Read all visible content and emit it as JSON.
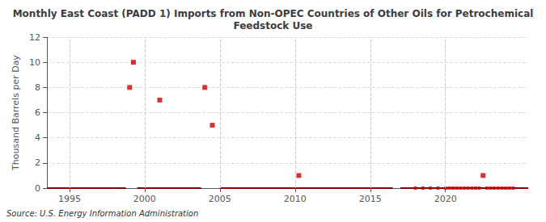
{
  "chart_data": {
    "type": "scatter",
    "title": "Monthly East Coast (PADD 1) Imports from Non-OPEC Countries of Other Oils for Petrochemical\nFeedstock Use",
    "ylabel": "Thousand Barrels per Day",
    "annotations": [
      "Source: U.S. Energy Information Administration"
    ],
    "xlim": [
      1993.5,
      2025.5
    ],
    "xticks": [
      1995,
      2000,
      2005,
      2010,
      2015,
      2020
    ],
    "ylim": [
      0,
      12
    ],
    "yticks": [
      0,
      2,
      4,
      6,
      8,
      10,
      12
    ],
    "grid": true,
    "series": [
      {
        "type": "line",
        "color": "#8b0000",
        "line_style": "solid",
        "x": [
          1993.5,
          1998.75,
          null,
          1999.5,
          2003.75,
          null,
          2005.0,
          2016.5,
          null,
          2017.0,
          2019.5,
          null,
          2019.5,
          2025.5
        ],
        "values": [
          0,
          0,
          null,
          0,
          0,
          null,
          0,
          0,
          null,
          0,
          0,
          null,
          0,
          0
        ]
      },
      {
        "type": "scatter",
        "color": "#cc0000",
        "marker": "square",
        "x": [
          1999.0,
          1999.25,
          2001.0,
          2004.0,
          2004.5,
          2010.25,
          2022.5
        ],
        "values": [
          8,
          10,
          7,
          8,
          5,
          1,
          1
        ]
      },
      {
        "type": "scatter",
        "color": "#cc0000",
        "marker": "square",
        "x": [
          2018.0,
          2018.5,
          2019.0,
          2019.5,
          2020.0,
          2020.25,
          2020.5,
          2020.75,
          2021.0,
          2021.25,
          2021.5,
          2021.75,
          2022.0,
          2022.25,
          2022.75,
          2023.0,
          2023.25,
          2023.5,
          2023.75,
          2024.0,
          2024.25,
          2024.5
        ],
        "values": [
          0,
          0,
          0,
          0,
          0,
          0,
          0,
          0,
          0,
          0,
          0,
          0,
          0,
          0,
          0,
          0,
          0,
          0,
          0,
          0,
          0,
          0
        ]
      }
    ]
  }
}
